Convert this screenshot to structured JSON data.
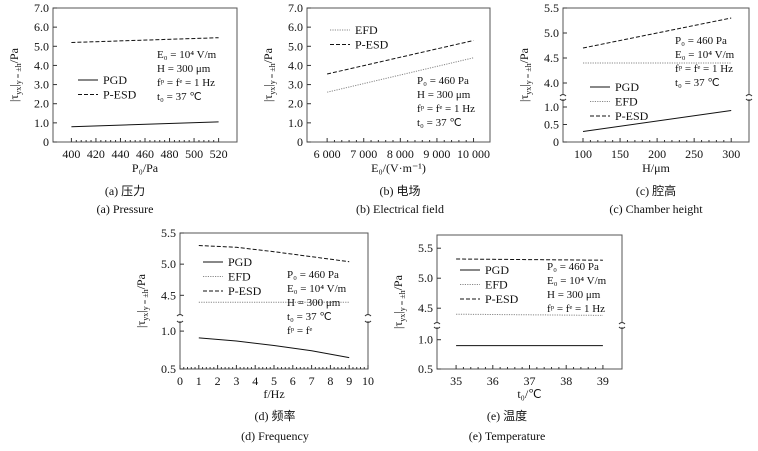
{
  "chart_data": [
    {
      "id": "a",
      "type": "line",
      "xlabel": "P₀/Pa",
      "ylabel": {
        "main": "|τ",
        "sub1": "yx",
        "mid": "|",
        "sub2": "y = ±h",
        "end": "/Pa"
      },
      "xlim": [
        385,
        535
      ],
      "y_segments": [
        [
          0,
          7
        ]
      ],
      "xticks": [
        400,
        420,
        440,
        460,
        480,
        500,
        520
      ],
      "xtick_labels": [
        "400",
        "420",
        "440",
        "460",
        "480",
        "500",
        "520"
      ],
      "yticks": [
        0,
        1,
        2,
        3,
        4,
        5,
        6,
        7
      ],
      "ytick_labels": [
        "0",
        "1.0",
        "2.0",
        "3.0",
        "4.0",
        "5.0",
        "6.0",
        "7.0"
      ],
      "series": [
        {
          "name": "PGD",
          "style": "solid",
          "x": [
            400,
            520
          ],
          "y": [
            0.8,
            1.05
          ]
        },
        {
          "name": "P-ESD",
          "style": "dashed",
          "x": [
            400,
            520
          ],
          "y": [
            5.2,
            5.45
          ]
        }
      ],
      "annotations": [
        "E₀ = 10⁴ V/m",
        "H = 300 μm",
        "fᵖ = fᵉ = 1 Hz",
        "t₀ = 37 ℃"
      ],
      "caption_cn": "(a) 压力",
      "caption_en": "(a) Pressure"
    },
    {
      "id": "b",
      "type": "line",
      "xlabel": "E₀/(V·m⁻¹)",
      "ylabel": {
        "main": "|τ",
        "sub1": "yx",
        "mid": "|",
        "sub2": "y = ±h",
        "end": "/Pa"
      },
      "xlim": [
        5450,
        10450
      ],
      "y_segments": [
        [
          0,
          7
        ]
      ],
      "xticks": [
        6000,
        7000,
        8000,
        9000,
        10000
      ],
      "xtick_labels": [
        "6 000",
        "7 000",
        "8 000",
        "9 000",
        "10 000"
      ],
      "yticks": [
        0,
        1,
        2,
        3,
        4,
        5,
        6,
        7
      ],
      "ytick_labels": [
        "0",
        "1.0",
        "2.0",
        "3.0",
        "4.0",
        "5.0",
        "6.0",
        "7.0"
      ],
      "series": [
        {
          "name": "EFD",
          "style": "dotted",
          "x": [
            6000,
            10000
          ],
          "y": [
            2.6,
            4.4
          ]
        },
        {
          "name": "P-ESD",
          "style": "dashed",
          "x": [
            6000,
            10000
          ],
          "y": [
            3.55,
            5.3
          ]
        }
      ],
      "annotations": [
        "P₀ = 460 Pa",
        "H = 300 μm",
        "fᵖ = fᵉ = 1 Hz",
        "t₀ = 37 ℃"
      ],
      "caption_cn": "(b) 电场",
      "caption_en": "(b) Electrical field"
    },
    {
      "id": "c",
      "type": "line",
      "xlabel": "H/μm",
      "ylabel": {
        "main": "|τ",
        "sub1": "yx",
        "mid": "|",
        "sub2": "y = ±h",
        "end": "/Pa"
      },
      "xlim": [
        73,
        324
      ],
      "y_segments": [
        [
          0,
          1.2
        ],
        [
          3.78,
          5.5
        ]
      ],
      "xticks": [
        100,
        150,
        200,
        250,
        300
      ],
      "xtick_labels": [
        "100",
        "150",
        "200",
        "250",
        "300"
      ],
      "yticks": [
        0,
        0.5,
        1.0,
        4.0,
        4.5,
        5.0,
        5.5
      ],
      "ytick_labels": [
        "0",
        "0.5",
        "1.0",
        "4.0",
        "4.5",
        "5.0",
        "5.5"
      ],
      "series": [
        {
          "name": "PGD",
          "style": "solid",
          "x": [
            100,
            300
          ],
          "y": [
            0.3,
            0.9
          ]
        },
        {
          "name": "EFD",
          "style": "dotted",
          "x": [
            100,
            300
          ],
          "y": [
            4.4,
            4.4
          ]
        },
        {
          "name": "P-ESD",
          "style": "dashed",
          "x": [
            100,
            300
          ],
          "y": [
            4.7,
            5.3
          ]
        }
      ],
      "annotations": [
        "P₀ = 460 Pa",
        "E₀ = 10⁴ V/m",
        "fᵖ = fᵉ = 1 Hz",
        "t₀ = 37 ℃"
      ],
      "caption_cn": "(c) 腔高",
      "caption_en": "(c) Chamber height"
    },
    {
      "id": "d",
      "type": "line",
      "xlabel": "f/Hz",
      "ylabel": {
        "main": "|τ",
        "sub1": "yx",
        "mid": "|",
        "sub2": "y = ±h",
        "end": "/Pa"
      },
      "xlim": [
        0,
        10
      ],
      "y_segments": [
        [
          0.5,
          1.12
        ],
        [
          4.2,
          5.5
        ]
      ],
      "xticks": [
        0,
        1,
        2,
        3,
        4,
        5,
        6,
        7,
        8,
        9,
        10
      ],
      "xtick_labels": [
        "0",
        "1",
        "2",
        "3",
        "4",
        "5",
        "6",
        "7",
        "8",
        "9",
        "10"
      ],
      "yticks": [
        0.5,
        1.0,
        4.5,
        5.0,
        5.5
      ],
      "ytick_labels": [
        "0.5",
        "1.0",
        "4.5",
        "5.0",
        "5.5"
      ],
      "series": [
        {
          "name": "PGD",
          "style": "solid",
          "x": [
            1,
            3,
            5,
            7,
            9
          ],
          "y": [
            0.91,
            0.87,
            0.81,
            0.74,
            0.65
          ]
        },
        {
          "name": "EFD",
          "style": "dotted",
          "x": [
            1,
            9
          ],
          "y": [
            4.39,
            4.39
          ]
        },
        {
          "name": "P-ESD",
          "style": "dashed",
          "x": [
            1,
            3,
            5,
            7,
            9
          ],
          "y": [
            5.3,
            5.27,
            5.2,
            5.12,
            5.04
          ]
        }
      ],
      "annotations": [
        "P₀ = 460 Pa",
        "E₀ = 10⁴ V/m",
        "H = 300 μm",
        "t₀ = 37 ℃",
        "fᵖ = fᵉ"
      ],
      "caption_cn": "(d) 频率",
      "caption_en": "(d) Frequency"
    },
    {
      "id": "e",
      "type": "line",
      "xlabel": "t₀/℃",
      "ylabel": {
        "main": "|τ",
        "sub1": "yx",
        "mid": "|",
        "sub2": "y = ±h",
        "end": "/Pa"
      },
      "xlim": [
        34.48,
        39.52
      ],
      "y_segments": [
        [
          0.5,
          1.2
        ],
        [
          4.27,
          5.72
        ]
      ],
      "xticks": [
        35,
        36,
        37,
        38,
        39
      ],
      "xtick_labels": [
        "35",
        "36",
        "37",
        "38",
        "39"
      ],
      "yticks": [
        0.5,
        1.0,
        4.5,
        5.0,
        5.5
      ],
      "ytick_labels": [
        "0.5",
        "1.0",
        "4.5",
        "5.0",
        "5.5"
      ],
      "series": [
        {
          "name": "PGD",
          "style": "solid",
          "x": [
            35,
            39
          ],
          "y": [
            0.9,
            0.9
          ]
        },
        {
          "name": "EFD",
          "style": "dotted",
          "x": [
            35,
            39
          ],
          "y": [
            4.4,
            4.38
          ]
        },
        {
          "name": "P-ESD",
          "style": "dashed",
          "x": [
            35,
            39
          ],
          "y": [
            5.32,
            5.3
          ]
        }
      ],
      "annotations": [
        "P₀ = 460 Pa",
        "E₀ = 10⁴ V/m",
        "H = 300 μm",
        "fᵖ = fᵉ = 1 Hz"
      ],
      "caption_cn": "(e) 温度",
      "caption_en": "(e) Temperature"
    }
  ],
  "colors": {
    "PGD": "#111111",
    "EFD": "#888888",
    "P-ESD": "#111111",
    "axis": "#555555"
  }
}
